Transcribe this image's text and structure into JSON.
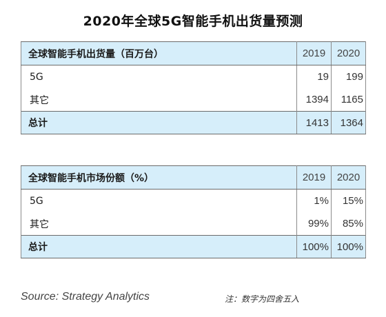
{
  "title": "2020年全球5G智能手机出货量预测",
  "shipments_table": {
    "header": {
      "label": "全球智能手机出货量（百万台）",
      "years": [
        "2019",
        "2020"
      ]
    },
    "rows": [
      {
        "label": "5G",
        "values": [
          "19",
          "199"
        ]
      },
      {
        "label": "其它",
        "values": [
          "1394",
          "1165"
        ]
      }
    ],
    "total": {
      "label": "总计",
      "values": [
        "1413",
        "1364"
      ]
    }
  },
  "share_table": {
    "header": {
      "label": "全球智能手机市场份额（%）",
      "years": [
        "2019",
        "2020"
      ]
    },
    "rows": [
      {
        "label": "5G",
        "values": [
          "1%",
          "15%"
        ]
      },
      {
        "label": "其它",
        "values": [
          "99%",
          "85%"
        ]
      }
    ],
    "total": {
      "label": "总计",
      "values": [
        "100%",
        "100%"
      ]
    }
  },
  "source": "Source: Strategy Analytics",
  "note": "注：数字为四舍五入",
  "colors": {
    "header_fill": "#d6eefa",
    "border": "#8a8a8a"
  }
}
